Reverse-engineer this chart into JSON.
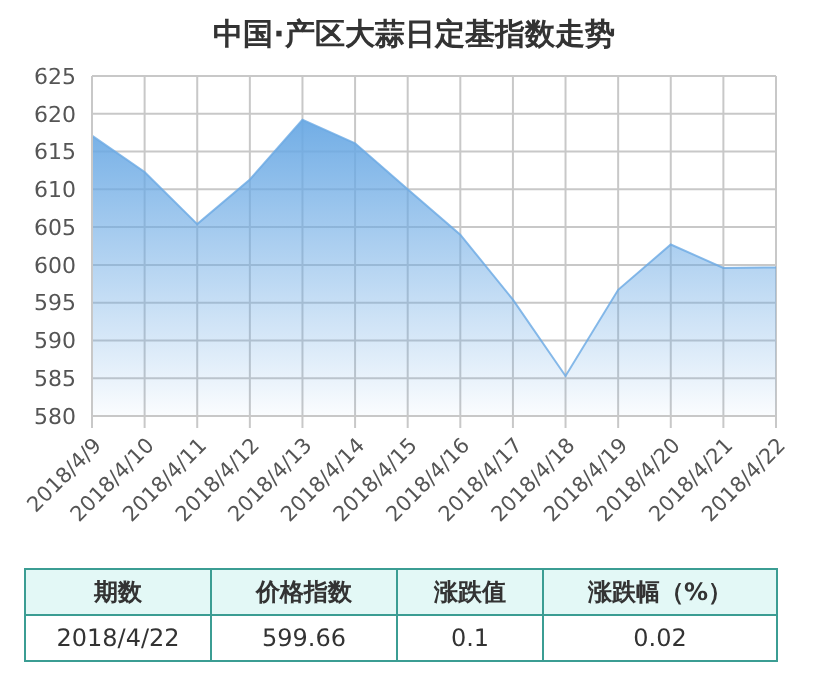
{
  "chart_data": {
    "type": "area",
    "title": "中国·产区大蒜日定基指数走势",
    "categories": [
      "2018/4/9",
      "2018/4/10",
      "2018/4/11",
      "2018/4/12",
      "2018/4/13",
      "2018/4/14",
      "2018/4/15",
      "2018/4/16",
      "2018/4/17",
      "2018/4/18",
      "2018/4/19",
      "2018/4/20",
      "2018/4/21",
      "2018/4/22"
    ],
    "series": [
      {
        "color": "#6aa9e4",
        "values": [
          617.1,
          612.3,
          605.4,
          611.3,
          619.2,
          616.1,
          610.0,
          604.0,
          595.4,
          585.3,
          596.7,
          602.7,
          599.6,
          599.66
        ]
      }
    ],
    "ylim": [
      580,
      625
    ],
    "yticks": [
      580,
      585,
      590,
      595,
      600,
      605,
      610,
      615,
      620,
      625
    ],
    "grid": true,
    "annotations": [
      "期数",
      "价格指数",
      "涨跌值",
      "涨跌幅（%）",
      "2018/4/22",
      "599.66",
      "0.1",
      "0.02"
    ]
  }
}
